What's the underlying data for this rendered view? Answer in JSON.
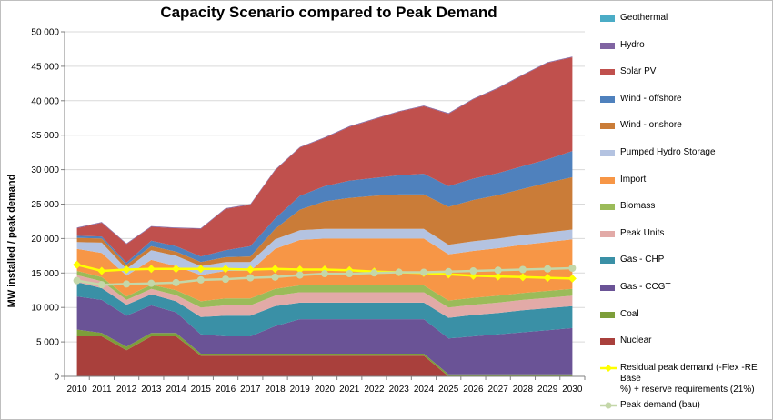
{
  "chart_data": {
    "type": "area",
    "title": "Capacity Scenario compared to Peak Demand",
    "ylabel": "MW installed / peak demand",
    "xlabel": "",
    "ylim": [
      0,
      50000
    ],
    "yticks": [
      0,
      5000,
      10000,
      15000,
      20000,
      25000,
      30000,
      35000,
      40000,
      45000,
      50000
    ],
    "ytick_labels": [
      "0",
      "5 000",
      "10 000",
      "15 000",
      "20 000",
      "25 000",
      "30 000",
      "35 000",
      "40 000",
      "45 000",
      "50 000"
    ],
    "categories": [
      "2010",
      "2011",
      "2012",
      "2013",
      "2014",
      "2015",
      "2016",
      "2017",
      "2018",
      "2019",
      "2020",
      "2021",
      "2022",
      "2023",
      "2024",
      "2025",
      "2026",
      "2027",
      "2028",
      "2029",
      "2030"
    ],
    "grid": true,
    "legend_position": "right",
    "stacked_series": [
      {
        "name": "Nuclear",
        "color": "#A9403C",
        "values": [
          5800,
          5800,
          3800,
          5800,
          5800,
          3000,
          3000,
          3000,
          3000,
          3000,
          3000,
          3000,
          3000,
          3000,
          3000,
          0,
          0,
          0,
          0,
          0,
          0
        ]
      },
      {
        "name": "Coal",
        "color": "#7D9E3A",
        "values": [
          1000,
          500,
          500,
          500,
          500,
          300,
          300,
          300,
          300,
          300,
          300,
          300,
          300,
          300,
          300,
          300,
          300,
          300,
          300,
          300,
          300
        ]
      },
      {
        "name": "Gas - CCGT",
        "color": "#6A5396",
        "values": [
          4800,
          4800,
          4500,
          4000,
          3000,
          2800,
          2500,
          2500,
          4000,
          5000,
          5000,
          5000,
          5000,
          5000,
          5000,
          5200,
          5500,
          5800,
          6100,
          6400,
          6700
        ]
      },
      {
        "name": "Gas - CHP",
        "color": "#3A90A6",
        "values": [
          2100,
          1700,
          1600,
          1600,
          1600,
          2500,
          3000,
          3000,
          2900,
          2400,
          2400,
          2400,
          2400,
          2400,
          2400,
          3000,
          3100,
          3100,
          3200,
          3200,
          3200
        ]
      },
      {
        "name": "Peak Units",
        "color": "#E2AAA7",
        "values": [
          1000,
          1000,
          700,
          800,
          900,
          1400,
          1500,
          1500,
          1500,
          1500,
          1500,
          1500,
          1500,
          1500,
          1500,
          1500,
          1500,
          1500,
          1500,
          1500,
          1500
        ]
      },
      {
        "name": "Biomass",
        "color": "#9BBB59",
        "values": [
          600,
          600,
          500,
          600,
          700,
          900,
          1000,
          1000,
          1000,
          1000,
          1000,
          1000,
          1000,
          1000,
          1000,
          1000,
          1000,
          1000,
          1000,
          1000,
          1000
        ]
      },
      {
        "name": "Import",
        "color": "#F79646",
        "values": [
          3200,
          3500,
          3000,
          3600,
          3500,
          3800,
          4000,
          4000,
          5800,
          6600,
          6800,
          6800,
          6800,
          6800,
          6800,
          6700,
          6800,
          6900,
          7000,
          7100,
          7200
        ]
      },
      {
        "name": "Pumped Hydro Storage",
        "color": "#B4C3E1",
        "values": [
          1000,
          1500,
          1000,
          1400,
          1500,
          1300,
          1300,
          1300,
          1400,
          1400,
          1400,
          1400,
          1400,
          1400,
          1400,
          1400,
          1400,
          1400,
          1400,
          1400,
          1400
        ]
      },
      {
        "name": "Wind - onshore",
        "color": "#CA7C38",
        "values": [
          600,
          600,
          600,
          600,
          600,
          600,
          700,
          800,
          1500,
          3000,
          4000,
          4500,
          4800,
          5000,
          5000,
          5500,
          6000,
          6300,
          6700,
          7200,
          7600
        ]
      },
      {
        "name": "Wind - offshore",
        "color": "#4F81BD",
        "values": [
          300,
          300,
          300,
          800,
          800,
          800,
          1000,
          1500,
          1500,
          2000,
          2200,
          2500,
          2600,
          2800,
          3000,
          3000,
          3100,
          3200,
          3300,
          3400,
          3800
        ]
      },
      {
        "name": "Solar PV",
        "color": "#C0504D",
        "values": [
          1100,
          2000,
          2700,
          2000,
          2600,
          4000,
          6000,
          6000,
          7000,
          7000,
          7000,
          7800,
          8500,
          9200,
          9800,
          10500,
          11500,
          12300,
          13200,
          14000,
          13600
        ]
      },
      {
        "name": "Hydro",
        "color": "#8064A2",
        "values": [
          100,
          100,
          100,
          100,
          100,
          100,
          100,
          100,
          100,
          100,
          100,
          100,
          100,
          100,
          100,
          100,
          100,
          100,
          100,
          100,
          100
        ]
      },
      {
        "name": "Geothermal",
        "color": "#4BACC6",
        "values": [
          0,
          0,
          0,
          0,
          0,
          0,
          0,
          0,
          0,
          0,
          0,
          0,
          0,
          0,
          0,
          0,
          0,
          0,
          0,
          0,
          0
        ]
      }
    ],
    "line_series": [
      {
        "name": "Residual peak demand (-Flex -RE Base %) + reserve requirements (21%)",
        "legend_lines": [
          "Residual peak demand (-Flex -RE Base",
          "%) + reserve requirements (21%)"
        ],
        "color": "#FFFF00",
        "marker": "diamond",
        "values": [
          16200,
          15300,
          15500,
          15600,
          15600,
          15600,
          15600,
          15500,
          15600,
          15500,
          15500,
          15400,
          15200,
          15100,
          15000,
          14800,
          14600,
          14500,
          14400,
          14300,
          14200
        ]
      },
      {
        "name": "Peak demand (bau)",
        "legend_lines": [
          "Peak demand (bau)"
        ],
        "color": "#C4D7A9",
        "marker": "circle",
        "values": [
          13900,
          13300,
          13400,
          13500,
          13600,
          14000,
          14100,
          14300,
          14400,
          14700,
          14900,
          14900,
          15000,
          15100,
          15100,
          15200,
          15300,
          15400,
          15500,
          15600,
          15700
        ]
      }
    ],
    "legend_order": [
      "Geothermal",
      "Hydro",
      "Solar PV",
      "Wind - offshore",
      "Wind - onshore",
      "Pumped Hydro Storage",
      "Import",
      "Biomass",
      "Peak Units",
      "Gas - CHP",
      "Gas - CCGT",
      "Coal",
      "Nuclear",
      "Residual peak demand (-Flex -RE Base %) + reserve requirements (21%)",
      "Peak demand (bau)"
    ]
  }
}
